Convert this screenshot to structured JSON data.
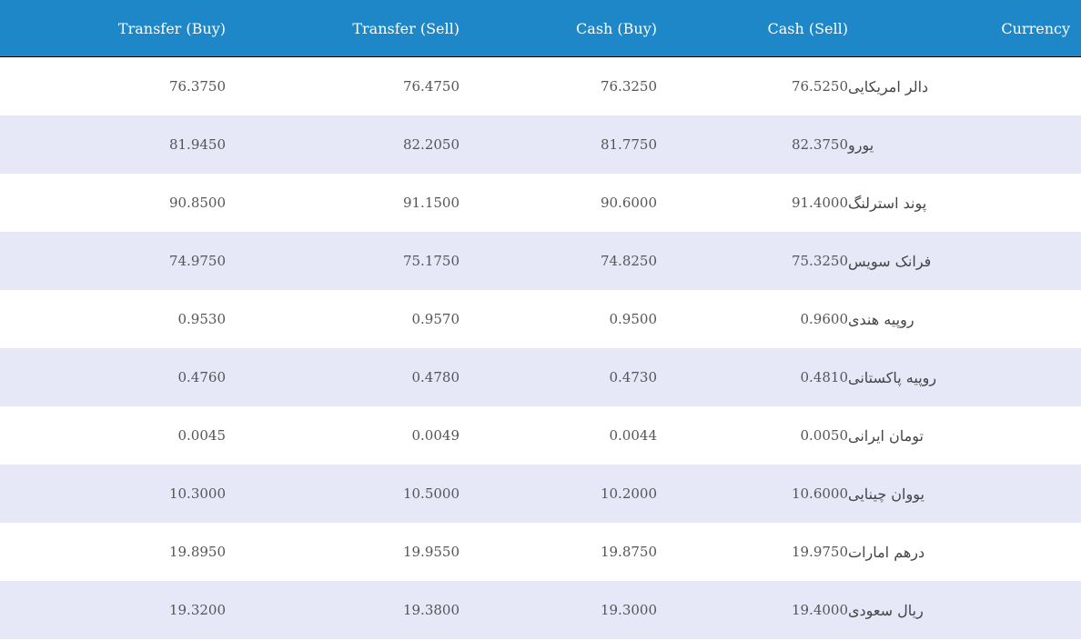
{
  "table": {
    "headers": {
      "transfer_buy": "Transfer (Buy)",
      "transfer_sell": "Transfer (Sell)",
      "cash_buy": "Cash (Buy)",
      "cash_sell": "Cash (Sell)",
      "currency": "Currency"
    },
    "rows": [
      {
        "transfer_buy": "76.3750",
        "transfer_sell": "76.4750",
        "cash_buy": "76.3250",
        "cash_sell": "76.5250",
        "currency": "دالر امریکایی"
      },
      {
        "transfer_buy": "81.9450",
        "transfer_sell": "82.2050",
        "cash_buy": "81.7750",
        "cash_sell": "82.3750",
        "currency": "یورو"
      },
      {
        "transfer_buy": "90.8500",
        "transfer_sell": "91.1500",
        "cash_buy": "90.6000",
        "cash_sell": "91.4000",
        "currency": "پوند استرلنگ"
      },
      {
        "transfer_buy": "74.9750",
        "transfer_sell": "75.1750",
        "cash_buy": "74.8250",
        "cash_sell": "75.3250",
        "currency": "فرانک سویس"
      },
      {
        "transfer_buy": "0.9530",
        "transfer_sell": "0.9570",
        "cash_buy": "0.9500",
        "cash_sell": "0.9600",
        "currency": "روپیه هندی"
      },
      {
        "transfer_buy": "0.4760",
        "transfer_sell": "0.4780",
        "cash_buy": "0.4730",
        "cash_sell": "0.4810",
        "currency": "روپیه پاکستانی"
      },
      {
        "transfer_buy": "0.0045",
        "transfer_sell": "0.0049",
        "cash_buy": "0.0044",
        "cash_sell": "0.0050",
        "currency": "تومان ایرانی"
      },
      {
        "transfer_buy": "10.3000",
        "transfer_sell": "10.5000",
        "cash_buy": "10.2000",
        "cash_sell": "10.6000",
        "currency": "یووان چینایی"
      },
      {
        "transfer_buy": "19.8950",
        "transfer_sell": "19.9550",
        "cash_buy": "19.8750",
        "cash_sell": "19.9750",
        "currency": "درهم امارات"
      },
      {
        "transfer_buy": "19.3200",
        "transfer_sell": "19.3800",
        "cash_buy": "19.3000",
        "cash_sell": "19.4000",
        "currency": "ریال سعودی"
      }
    ]
  },
  "colors": {
    "header_bg": "#1e87c8",
    "row_alt_bg": "#e6e8f8"
  }
}
